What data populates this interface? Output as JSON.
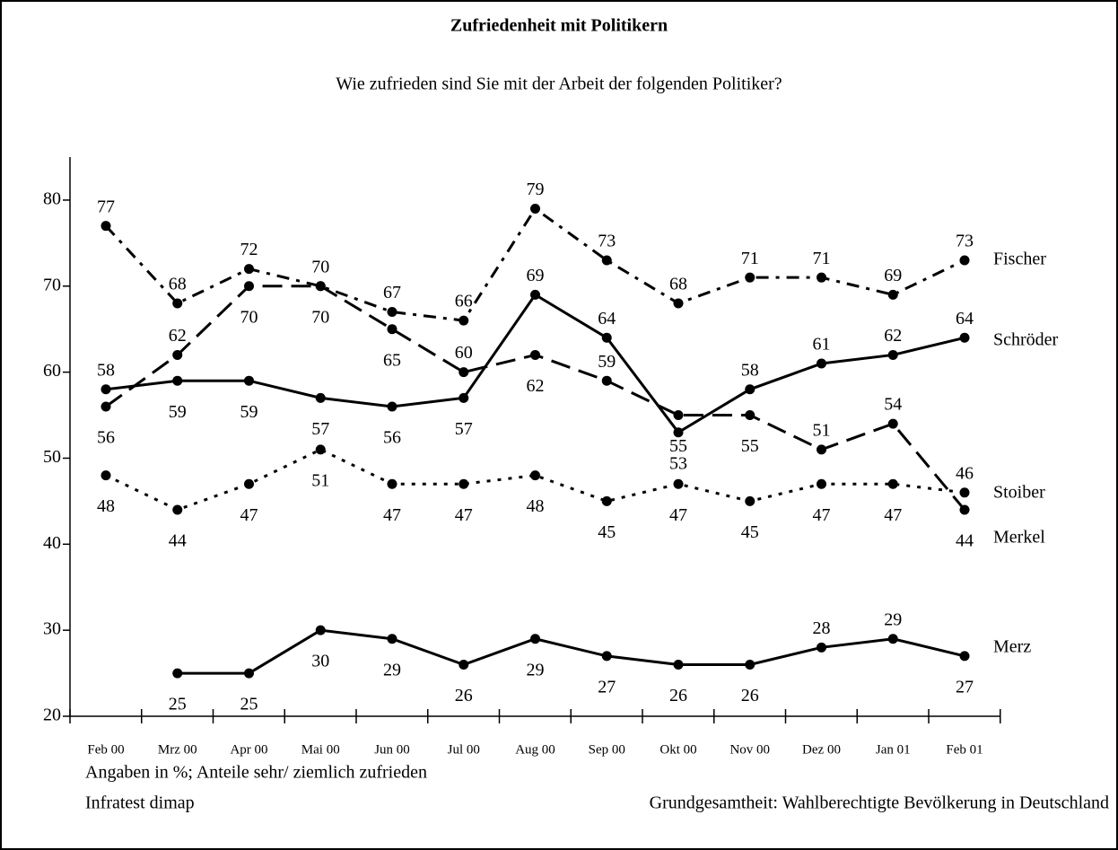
{
  "chart_data": {
    "type": "line",
    "title": "Zufriedenheit mit Politikern",
    "subtitle": "Wie zufrieden sind Sie mit der Arbeit der folgenden Politiker?",
    "categories": [
      "Feb 00",
      "Mrz 00",
      "Apr 00",
      "Mai 00",
      "Jun 00",
      "Jul 00",
      "Aug 00",
      "Sep 00",
      "Okt 00",
      "Nov 00",
      "Dez 00",
      "Jan 01",
      "Feb 01"
    ],
    "series": [
      {
        "name": "Fischer",
        "color": "#000000",
        "style": "dash-dot",
        "values": [
          77,
          68,
          72,
          70,
          67,
          66,
          79,
          73,
          68,
          71,
          71,
          69,
          73
        ]
      },
      {
        "name": "Schröder",
        "color": "#000000",
        "style": "solid",
        "values": [
          58,
          59,
          59,
          57,
          56,
          57,
          69,
          64,
          53,
          58,
          61,
          62,
          64
        ]
      },
      {
        "name": "Stoiber",
        "color": "#000000",
        "style": "dotted",
        "values": [
          48,
          44,
          47,
          51,
          47,
          47,
          48,
          45,
          47,
          45,
          47,
          47,
          46
        ]
      },
      {
        "name": "Merkel",
        "color": "#000000",
        "style": "dashed",
        "values": [
          56,
          62,
          70,
          70,
          65,
          60,
          62,
          59,
          55,
          55,
          51,
          54,
          44
        ]
      },
      {
        "name": "Merz",
        "color": "#000000",
        "style": "solid",
        "values": [
          null,
          25,
          25,
          30,
          29,
          26,
          29,
          27,
          26,
          26,
          28,
          29,
          27
        ]
      }
    ],
    "ylim": [
      20,
      85
    ],
    "yticks": [
      20,
      30,
      40,
      50,
      60,
      70,
      80
    ],
    "notes": [
      "Angaben in %; Anteile sehr/ ziemlich zufrieden",
      "Infratest dimap",
      "Grundgesamtheit: Wahlberechtigte Bevölkerung in Deutschland"
    ]
  }
}
